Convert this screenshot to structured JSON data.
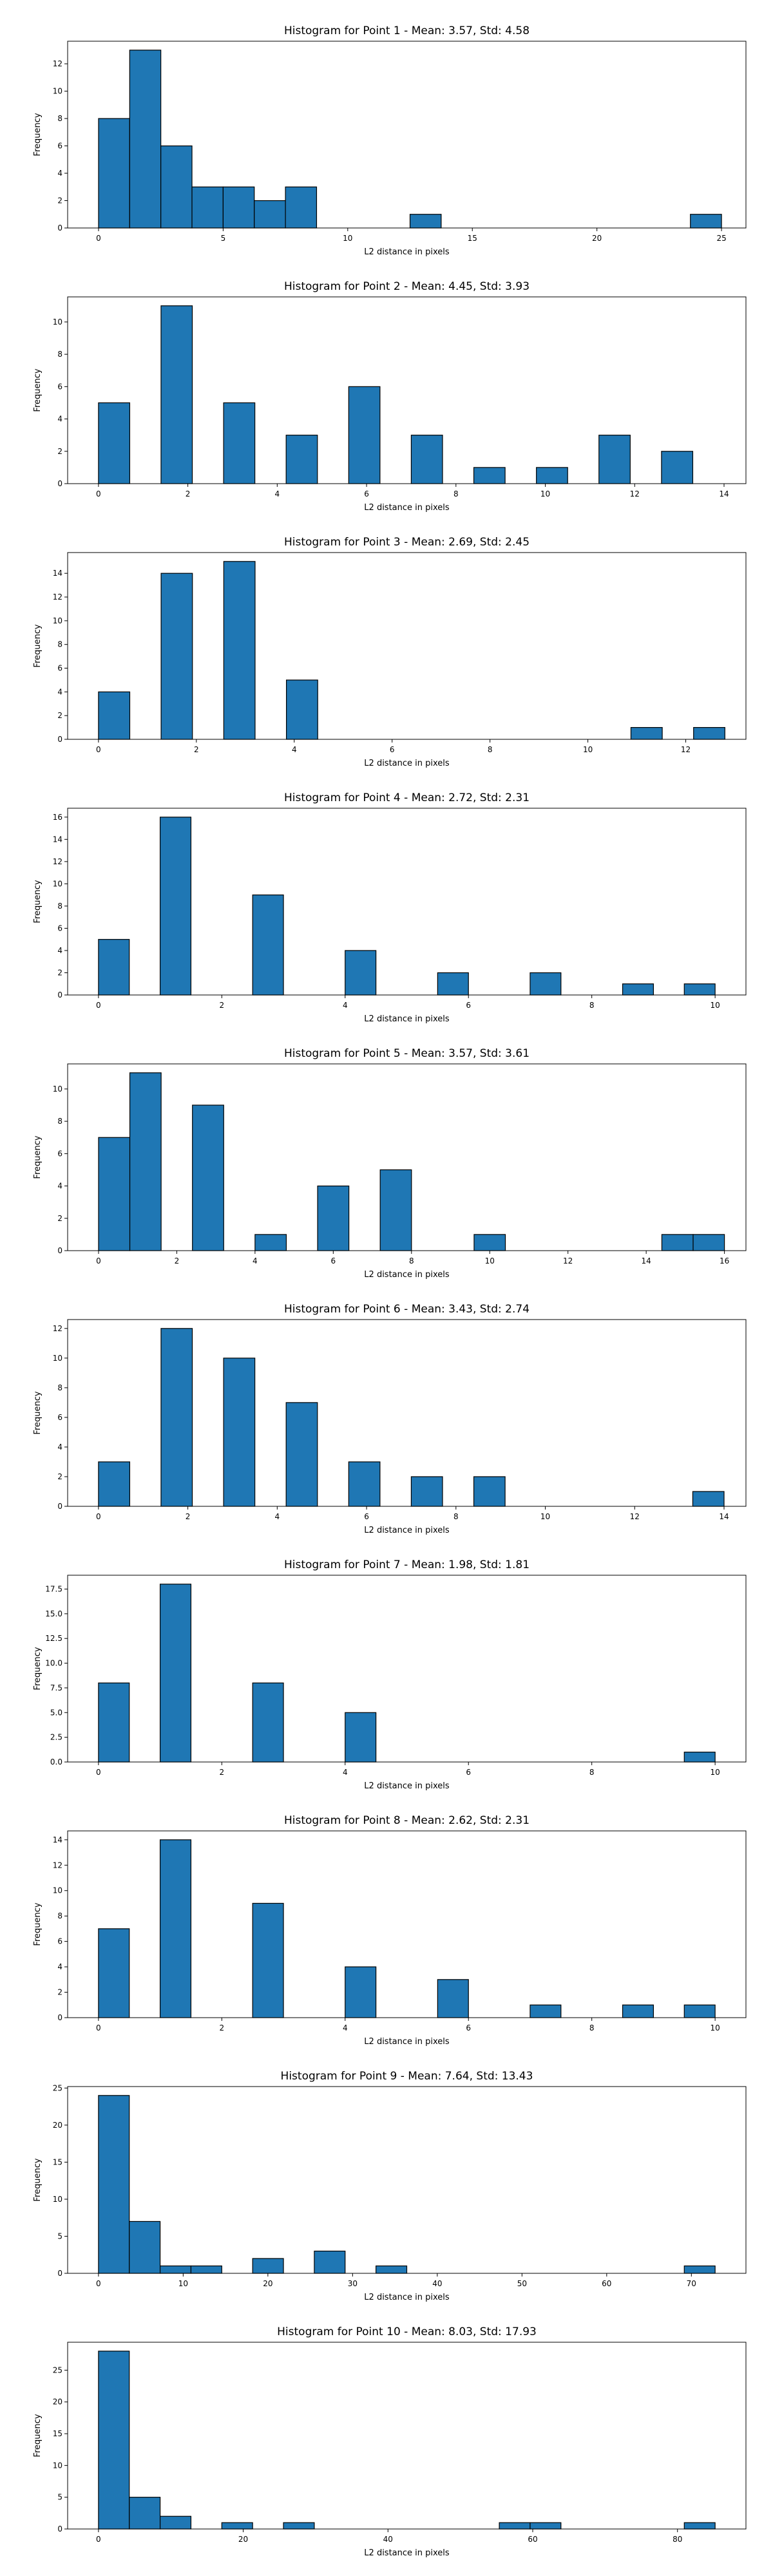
{
  "style": {
    "bar_color": "#1f77b4",
    "edge_color": "#000000"
  },
  "chart_data": [
    {
      "type": "bar",
      "title": "Histogram for Point 1 - Mean: 3.57, Std: 4.58",
      "xlabel": "L2 distance in pixels",
      "ylabel": "Frequency",
      "xlim": [
        -1.24,
        25.98
      ],
      "ylim": [
        0,
        13.65
      ],
      "xticks": [
        0,
        5,
        10,
        15,
        20,
        25
      ],
      "yticks": [
        0,
        2,
        4,
        6,
        8,
        10,
        12
      ],
      "bins": [
        {
          "x0": 0.0,
          "x1": 1.25,
          "count": 8
        },
        {
          "x0": 1.25,
          "x1": 2.5,
          "count": 13
        },
        {
          "x0": 2.5,
          "x1": 3.75,
          "count": 6
        },
        {
          "x0": 3.75,
          "x1": 5.0,
          "count": 3
        },
        {
          "x0": 5.0,
          "x1": 6.25,
          "count": 3
        },
        {
          "x0": 6.25,
          "x1": 7.5,
          "count": 2
        },
        {
          "x0": 7.5,
          "x1": 8.75,
          "count": 3
        },
        {
          "x0": 12.5,
          "x1": 13.75,
          "count": 1
        },
        {
          "x0": 23.75,
          "x1": 25.0,
          "count": 1
        }
      ]
    },
    {
      "type": "bar",
      "title": "Histogram for Point 2 - Mean: 4.45, Std: 3.93",
      "xlabel": "L2 distance in pixels",
      "ylabel": "Frequency",
      "xlim": [
        -0.69,
        14.49
      ],
      "ylim": [
        0,
        11.55
      ],
      "xticks": [
        0,
        2,
        4,
        6,
        8,
        10,
        12,
        14
      ],
      "yticks": [
        0,
        2,
        4,
        6,
        8,
        10
      ],
      "bins": [
        {
          "x0": 0.0,
          "x1": 0.7,
          "count": 5
        },
        {
          "x0": 1.4,
          "x1": 2.1,
          "count": 11
        },
        {
          "x0": 2.8,
          "x1": 3.5,
          "count": 5
        },
        {
          "x0": 4.2,
          "x1": 4.9,
          "count": 3
        },
        {
          "x0": 5.6,
          "x1": 6.3,
          "count": 6
        },
        {
          "x0": 7.0,
          "x1": 7.7,
          "count": 3
        },
        {
          "x0": 8.4,
          "x1": 9.1,
          "count": 1
        },
        {
          "x0": 9.8,
          "x1": 10.5,
          "count": 1
        },
        {
          "x0": 11.2,
          "x1": 11.9,
          "count": 3
        },
        {
          "x0": 12.6,
          "x1": 13.3,
          "count": 2
        }
      ]
    },
    {
      "type": "bar",
      "title": "Histogram for Point 3 - Mean: 2.69, Std: 2.45",
      "xlabel": "L2 distance in pixels",
      "ylabel": "Frequency",
      "xlim": [
        -0.63,
        13.23
      ],
      "ylim": [
        0,
        15.75
      ],
      "xticks": [
        0,
        2,
        4,
        6,
        8,
        10,
        12
      ],
      "yticks": [
        0,
        2,
        4,
        6,
        8,
        10,
        12,
        14
      ],
      "bins": [
        {
          "x0": 0.0,
          "x1": 0.64,
          "count": 4
        },
        {
          "x0": 1.28,
          "x1": 1.92,
          "count": 14
        },
        {
          "x0": 2.56,
          "x1": 3.2,
          "count": 15
        },
        {
          "x0": 3.84,
          "x1": 4.48,
          "count": 5
        },
        {
          "x0": 10.88,
          "x1": 11.52,
          "count": 1
        },
        {
          "x0": 12.16,
          "x1": 12.8,
          "count": 1
        }
      ]
    },
    {
      "type": "bar",
      "title": "Histogram for Point 4 - Mean: 2.72, Std: 2.31",
      "xlabel": "L2 distance in pixels",
      "ylabel": "Frequency",
      "xlim": [
        -0.5,
        10.5
      ],
      "ylim": [
        0,
        16.8
      ],
      "xticks": [
        0,
        2,
        4,
        6,
        8,
        10
      ],
      "yticks": [
        0,
        2,
        4,
        6,
        8,
        10,
        12,
        14,
        16
      ],
      "bins": [
        {
          "x0": 0.0,
          "x1": 0.5,
          "count": 5
        },
        {
          "x0": 1.0,
          "x1": 1.5,
          "count": 16
        },
        {
          "x0": 2.5,
          "x1": 3.0,
          "count": 9
        },
        {
          "x0": 4.0,
          "x1": 4.5,
          "count": 4
        },
        {
          "x0": 5.5,
          "x1": 6.0,
          "count": 2
        },
        {
          "x0": 7.0,
          "x1": 7.5,
          "count": 2
        },
        {
          "x0": 8.5,
          "x1": 9.0,
          "count": 1
        },
        {
          "x0": 9.5,
          "x1": 10.0,
          "count": 1
        }
      ]
    },
    {
      "type": "bar",
      "title": "Histogram for Point 5 - Mean: 3.57, Std: 3.61",
      "xlabel": "L2 distance in pixels",
      "ylabel": "Frequency",
      "xlim": [
        -0.79,
        16.55
      ],
      "ylim": [
        0,
        11.55
      ],
      "xticks": [
        0,
        2,
        4,
        6,
        8,
        10,
        12,
        14,
        16
      ],
      "yticks": [
        0,
        2,
        4,
        6,
        8,
        10
      ],
      "bins": [
        {
          "x0": 0.0,
          "x1": 0.8,
          "count": 7
        },
        {
          "x0": 0.8,
          "x1": 1.6,
          "count": 11
        },
        {
          "x0": 2.4,
          "x1": 3.2,
          "count": 9
        },
        {
          "x0": 4.0,
          "x1": 4.8,
          "count": 1
        },
        {
          "x0": 5.6,
          "x1": 6.4,
          "count": 4
        },
        {
          "x0": 7.2,
          "x1": 8.0,
          "count": 5
        },
        {
          "x0": 9.6,
          "x1": 10.4,
          "count": 1
        },
        {
          "x0": 14.4,
          "x1": 15.2,
          "count": 1
        },
        {
          "x0": 15.2,
          "x1": 16.0,
          "count": 1
        }
      ]
    },
    {
      "type": "bar",
      "title": "Histogram for Point 6 - Mean: 3.43, Std: 2.74",
      "xlabel": "L2 distance in pixels",
      "ylabel": "Frequency",
      "xlim": [
        -0.69,
        14.49
      ],
      "ylim": [
        0,
        12.6
      ],
      "xticks": [
        0,
        2,
        4,
        6,
        8,
        10,
        12,
        14
      ],
      "yticks": [
        0,
        2,
        4,
        6,
        8,
        10,
        12
      ],
      "bins": [
        {
          "x0": 0.0,
          "x1": 0.7,
          "count": 3
        },
        {
          "x0": 1.4,
          "x1": 2.1,
          "count": 12
        },
        {
          "x0": 2.8,
          "x1": 3.5,
          "count": 10
        },
        {
          "x0": 4.2,
          "x1": 4.9,
          "count": 7
        },
        {
          "x0": 5.6,
          "x1": 6.3,
          "count": 3
        },
        {
          "x0": 7.0,
          "x1": 7.7,
          "count": 2
        },
        {
          "x0": 8.4,
          "x1": 9.1,
          "count": 2
        },
        {
          "x0": 13.3,
          "x1": 14.0,
          "count": 1
        }
      ]
    },
    {
      "type": "bar",
      "title": "Histogram for Point 7 - Mean: 1.98, Std: 1.81",
      "xlabel": "L2 distance in pixels",
      "ylabel": "Frequency",
      "xlim": [
        -0.5,
        10.5
      ],
      "ylim": [
        0,
        18.9
      ],
      "xticks": [
        0,
        2,
        4,
        6,
        8,
        10
      ],
      "yticks": [
        0.0,
        2.5,
        5.0,
        7.5,
        10.0,
        12.5,
        15.0,
        17.5
      ],
      "ytick_format": "1dp",
      "bins": [
        {
          "x0": 0.0,
          "x1": 0.5,
          "count": 8
        },
        {
          "x0": 1.0,
          "x1": 1.5,
          "count": 18
        },
        {
          "x0": 2.5,
          "x1": 3.0,
          "count": 8
        },
        {
          "x0": 4.0,
          "x1": 4.5,
          "count": 5
        },
        {
          "x0": 9.5,
          "x1": 10.0,
          "count": 1
        }
      ]
    },
    {
      "type": "bar",
      "title": "Histogram for Point 8 - Mean: 2.62, Std: 2.31",
      "xlabel": "L2 distance in pixels",
      "ylabel": "Frequency",
      "xlim": [
        -0.5,
        10.5
      ],
      "ylim": [
        0,
        14.7
      ],
      "xticks": [
        0,
        2,
        4,
        6,
        8,
        10
      ],
      "yticks": [
        0,
        2,
        4,
        6,
        8,
        10,
        12,
        14
      ],
      "bins": [
        {
          "x0": 0.0,
          "x1": 0.5,
          "count": 7
        },
        {
          "x0": 1.0,
          "x1": 1.5,
          "count": 14
        },
        {
          "x0": 2.5,
          "x1": 3.0,
          "count": 9
        },
        {
          "x0": 4.0,
          "x1": 4.5,
          "count": 4
        },
        {
          "x0": 5.5,
          "x1": 6.0,
          "count": 3
        },
        {
          "x0": 7.0,
          "x1": 7.5,
          "count": 1
        },
        {
          "x0": 8.5,
          "x1": 9.0,
          "count": 1
        },
        {
          "x0": 9.5,
          "x1": 10.0,
          "count": 1
        }
      ]
    },
    {
      "type": "bar",
      "title": "Histogram for Point 9 - Mean: 7.64, Std: 13.43",
      "xlabel": "L2 distance in pixels",
      "ylabel": "Frequency",
      "xlim": [
        -3.64,
        76.44
      ],
      "ylim": [
        0,
        25.2
      ],
      "xticks": [
        0,
        10,
        20,
        30,
        40,
        50,
        60,
        70
      ],
      "yticks": [
        0,
        5,
        10,
        15,
        20,
        25
      ],
      "bins": [
        {
          "x0": 0.0,
          "x1": 3.64,
          "count": 24
        },
        {
          "x0": 3.64,
          "x1": 7.28,
          "count": 7
        },
        {
          "x0": 7.28,
          "x1": 10.92,
          "count": 1
        },
        {
          "x0": 10.92,
          "x1": 14.56,
          "count": 1
        },
        {
          "x0": 18.2,
          "x1": 21.84,
          "count": 2
        },
        {
          "x0": 25.48,
          "x1": 29.12,
          "count": 3
        },
        {
          "x0": 32.76,
          "x1": 36.4,
          "count": 1
        },
        {
          "x0": 69.16,
          "x1": 72.8,
          "count": 1
        }
      ]
    },
    {
      "type": "bar",
      "title": "Histogram for Point 10 - Mean: 8.03, Std: 17.93",
      "xlabel": "L2 distance in pixels",
      "ylabel": "Frequency",
      "xlim": [
        -4.26,
        89.46
      ],
      "ylim": [
        0,
        29.4
      ],
      "xticks": [
        0,
        20,
        40,
        60,
        80
      ],
      "yticks": [
        0,
        5,
        10,
        15,
        20,
        25
      ],
      "bins": [
        {
          "x0": 0.0,
          "x1": 4.26,
          "count": 28
        },
        {
          "x0": 4.26,
          "x1": 8.52,
          "count": 5
        },
        {
          "x0": 8.52,
          "x1": 12.78,
          "count": 2
        },
        {
          "x0": 17.04,
          "x1": 21.3,
          "count": 1
        },
        {
          "x0": 25.56,
          "x1": 29.82,
          "count": 1
        },
        {
          "x0": 55.38,
          "x1": 59.64,
          "count": 1
        },
        {
          "x0": 59.64,
          "x1": 63.9,
          "count": 1
        },
        {
          "x0": 80.94,
          "x1": 85.2,
          "count": 1
        }
      ]
    }
  ]
}
